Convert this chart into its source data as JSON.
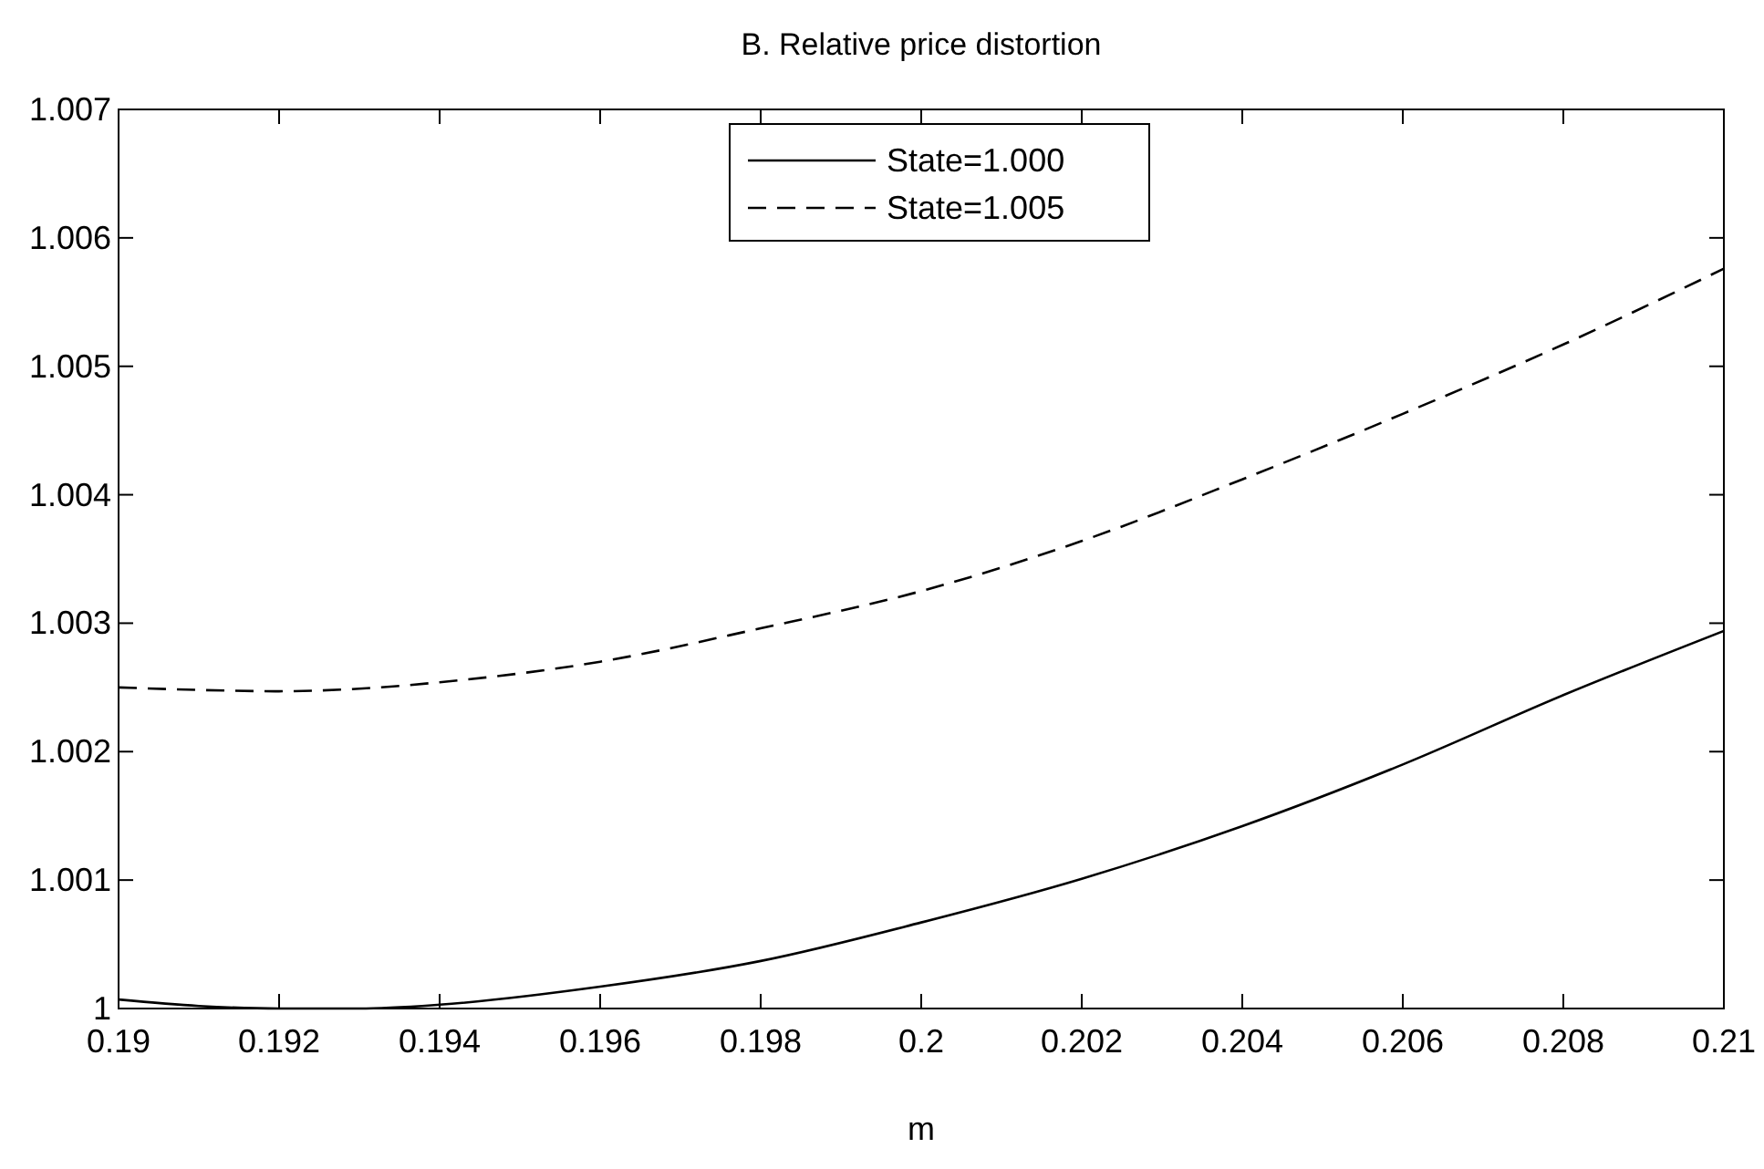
{
  "chart_data": {
    "type": "line",
    "title": "B. Relative price distortion",
    "xlabel": "m",
    "x": [
      0.19,
      0.191,
      0.192,
      0.193,
      0.194,
      0.196,
      0.198,
      0.2,
      0.202,
      0.204,
      0.206,
      0.208,
      0.21
    ],
    "series": [
      {
        "name": "State=1.000",
        "color": "#000000",
        "line_style": "solid",
        "values": [
          1.00007,
          1.00002,
          1.0,
          1.0,
          1.00003,
          1.00017,
          1.00037,
          1.00067,
          1.00101,
          1.00142,
          1.0019,
          1.00244,
          1.00294
        ]
      },
      {
        "name": "State=1.005",
        "color": "#000000",
        "line_style": "dashed",
        "values": [
          1.0025,
          1.00248,
          1.00247,
          1.00249,
          1.00254,
          1.0027,
          1.00296,
          1.00325,
          1.00364,
          1.00412,
          1.00463,
          1.00517,
          1.00576
        ]
      }
    ],
    "xlim": [
      0.19,
      0.21
    ],
    "xticks": [
      0.19,
      0.192,
      0.194,
      0.196,
      0.198,
      0.2,
      0.202,
      0.204,
      0.206,
      0.208,
      0.21
    ],
    "ylim": [
      1,
      1.007
    ],
    "yticks": [
      1,
      1.001,
      1.002,
      1.003,
      1.004,
      1.005,
      1.006,
      1.007
    ],
    "grid": false,
    "legend": "top"
  }
}
